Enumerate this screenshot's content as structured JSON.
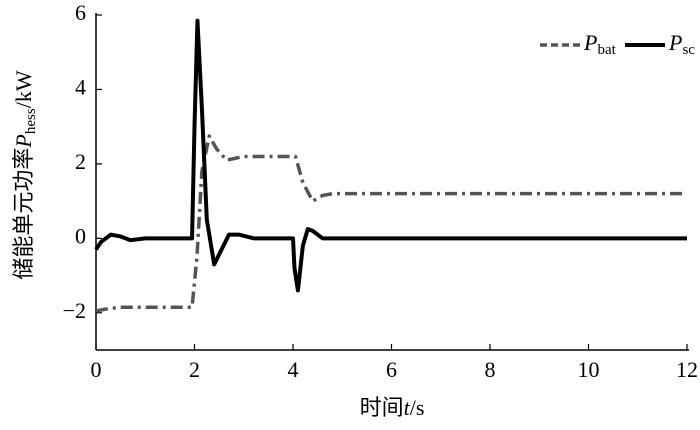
{
  "chart_data": {
    "type": "line",
    "xlabel": {
      "text": "时间",
      "symbol": "t",
      "unit": "/s"
    },
    "ylabel": {
      "text": "储能单元功率",
      "symbol": "P",
      "subscript": "hess",
      "unit": "/kW"
    },
    "xlim": [
      0,
      12
    ],
    "xticks": [
      0,
      2,
      4,
      6,
      8,
      10,
      12
    ],
    "ylim": [
      -3,
      6
    ],
    "yticks": [
      {
        "value": -2,
        "label": "−2"
      },
      0,
      2,
      4,
      6
    ],
    "legend": "top-right",
    "series": [
      {
        "name": "P",
        "name_subscript": "bat",
        "color": "#555555",
        "dash": true,
        "x": [
          0,
          0.2,
          0.5,
          1,
          1.95,
          2.05,
          2.15,
          2.3,
          2.45,
          2.65,
          3,
          3.5,
          4.05,
          4.2,
          4.4,
          4.6,
          4.8,
          6,
          8,
          10,
          12
        ],
        "values": [
          -1.95,
          -1.9,
          -1.85,
          -1.85,
          -1.85,
          -0.5,
          1.8,
          2.75,
          2.4,
          2.1,
          2.2,
          2.2,
          2.2,
          1.5,
          1.0,
          1.15,
          1.2,
          1.2,
          1.2,
          1.2,
          1.2
        ]
      },
      {
        "name": "P",
        "name_subscript": "sc",
        "color": "#000000",
        "dash": false,
        "x": [
          0,
          0.1,
          0.3,
          0.5,
          0.7,
          1,
          1.95,
          2.0,
          2.06,
          2.15,
          2.25,
          2.4,
          2.55,
          2.7,
          2.9,
          3.2,
          4.0,
          4.03,
          4.1,
          4.2,
          4.3,
          4.4,
          4.6,
          4.8,
          6,
          12
        ],
        "values": [
          -0.3,
          -0.1,
          0.1,
          0.05,
          -0.05,
          0,
          0,
          3,
          5.85,
          3.5,
          0.5,
          -0.7,
          -0.3,
          0.1,
          0.1,
          0,
          0,
          -0.8,
          -1.4,
          -0.2,
          0.25,
          0.2,
          0,
          0,
          0,
          0
        ]
      }
    ]
  }
}
